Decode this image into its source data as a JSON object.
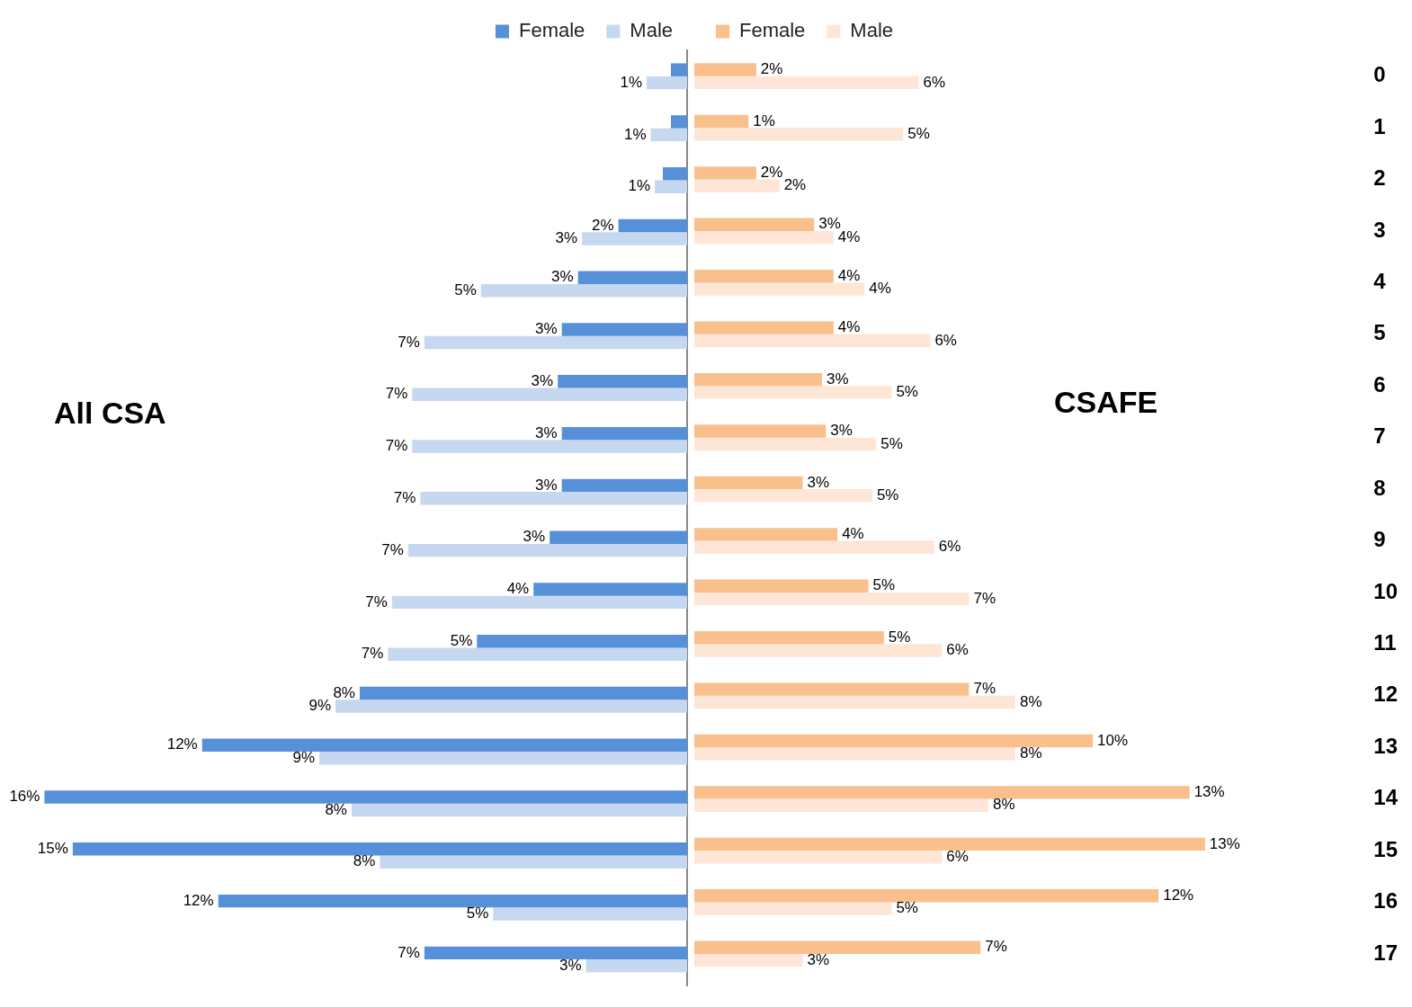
{
  "chart_data": [
    {
      "type": "bar",
      "orientation": "horizontal",
      "title": "All CSA",
      "categories": [
        "0",
        "1",
        "2",
        "3",
        "4",
        "5",
        "6",
        "7",
        "8",
        "9",
        "10",
        "11",
        "12",
        "13",
        "14",
        "15",
        "16",
        "17"
      ],
      "xlim": [
        17,
        0
      ],
      "tick_labels": false,
      "legend": "top right",
      "series": [
        {
          "name": "Female",
          "color": "#5590d8",
          "values": [
            0.4,
            0.4,
            0.6,
            1.7,
            2.7,
            3.1,
            3.2,
            3.1,
            3.1,
            3.4,
            3.8,
            5.2,
            8.1,
            12.0,
            15.9,
            15.2,
            11.6,
            6.5
          ],
          "value_labels": [
            null,
            null,
            null,
            "2%",
            "3%",
            "3%",
            "3%",
            "3%",
            "3%",
            "3%",
            "4%",
            "5%",
            "8%",
            "12%",
            "16%",
            "15%",
            "12%",
            "7%"
          ]
        },
        {
          "name": "Male",
          "color": "#c6d8f0",
          "values": [
            1.0,
            0.9,
            0.8,
            2.6,
            5.1,
            6.5,
            6.8,
            6.8,
            6.6,
            6.9,
            7.3,
            7.4,
            8.7,
            9.1,
            8.3,
            7.6,
            4.8,
            2.5
          ],
          "value_labels": [
            "1%",
            "1%",
            "1%",
            "3%",
            "5%",
            "7%",
            "7%",
            "7%",
            "7%",
            "7%",
            "7%",
            "7%",
            "9%",
            "9%",
            "8%",
            "8%",
            "5%",
            "3%"
          ]
        }
      ]
    },
    {
      "type": "bar",
      "orientation": "horizontal",
      "title": "CSAFE",
      "categories": [
        "0",
        "1",
        "2",
        "3",
        "4",
        "5",
        "6",
        "7",
        "8",
        "9",
        "10",
        "11",
        "12",
        "13",
        "14",
        "15",
        "16",
        "17"
      ],
      "tick_labels": "y",
      "legend": "top left",
      "series": [
        {
          "name": "Female",
          "color": "#f9bf8c",
          "values": [
            1.6,
            1.4,
            1.6,
            3.1,
            3.6,
            3.6,
            3.3,
            3.4,
            2.8,
            3.7,
            4.5,
            4.9,
            7.1,
            10.3,
            12.8,
            13.2,
            12.0,
            7.4
          ],
          "value_labels": [
            "2%",
            "1%",
            "2%",
            "3%",
            "4%",
            "4%",
            "3%",
            "3%",
            "3%",
            "4%",
            "5%",
            "5%",
            "7%",
            "10%",
            "13%",
            "13%",
            "12%",
            "7%"
          ]
        },
        {
          "name": "Male",
          "color": "#fde6d6",
          "values": [
            5.8,
            5.4,
            2.2,
            3.6,
            4.4,
            6.1,
            5.1,
            4.7,
            4.6,
            6.2,
            7.1,
            6.4,
            8.3,
            8.3,
            7.6,
            6.4,
            5.1,
            2.8
          ],
          "value_labels": [
            "6%",
            "5%",
            "2%",
            "4%",
            "4%",
            "6%",
            "5%",
            "5%",
            "5%",
            "6%",
            "7%",
            "6%",
            "8%",
            "8%",
            "8%",
            "6%",
            "5%",
            "3%"
          ]
        }
      ]
    }
  ]
}
